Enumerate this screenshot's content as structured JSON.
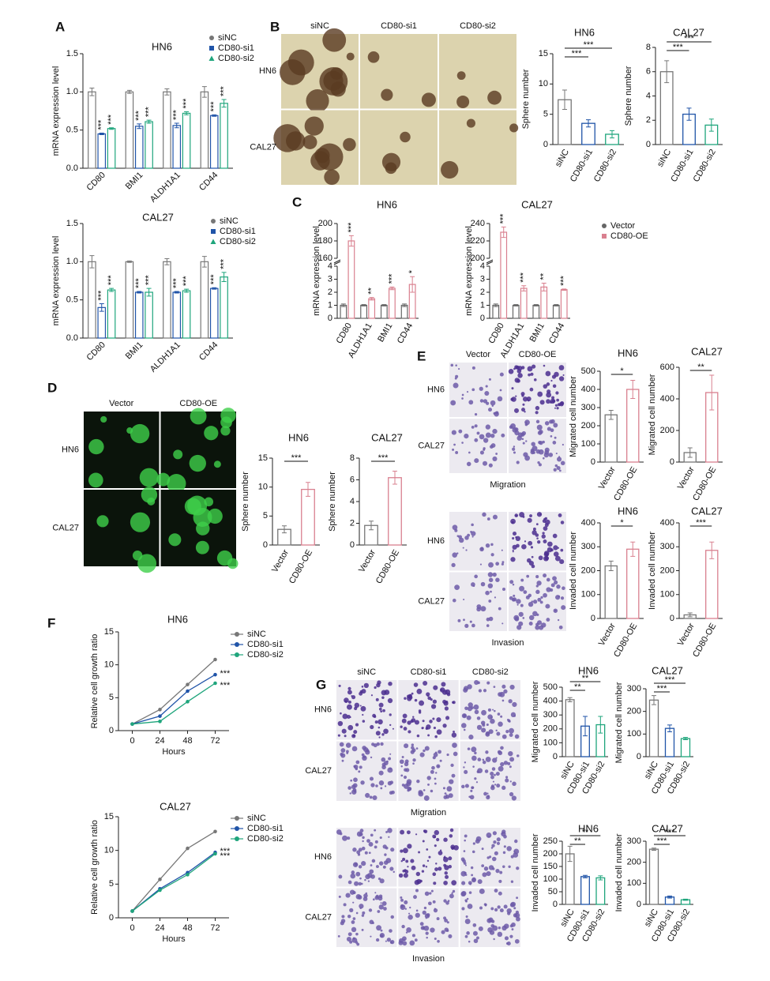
{
  "panel_letters": [
    "A",
    "B",
    "C",
    "D",
    "E",
    "F",
    "G"
  ],
  "images": [
    {
      "columns": [
        "siNC",
        "CD80-si1",
        "CD80-si2"
      ],
      "rows": [
        "HN6",
        "CAL27"
      ]
    },
    {
      "columns": [
        "Vector",
        "CD80-OE"
      ],
      "rows": [
        "HN6",
        "CAL27"
      ]
    },
    {
      "columns": [
        "Vector",
        "CD80-OE"
      ],
      "rows": [
        "HN6",
        "CAL27"
      ],
      "caption": "Migration"
    },
    {
      "rows": [
        "HN6",
        "CAL27"
      ],
      "caption": "Invasion"
    },
    {
      "columns": [
        "siNC",
        "CD80-si1",
        "CD80-si2"
      ],
      "rows": [
        "HN6",
        "CAL27"
      ],
      "caption": "Migration"
    },
    {
      "rows": [
        "HN6",
        "CAL27"
      ],
      "caption": "Invasion"
    }
  ],
  "chart_data": [
    {
      "type": "bar",
      "title": "HN6",
      "ylabel": "mRNA expression level",
      "legend": true,
      "categories": [
        "CD80",
        "BMI1",
        "ALDH1A1",
        "CD44"
      ],
      "series": [
        {
          "name": "siNC",
          "color": "#777777",
          "values": [
            1,
            1,
            1,
            1
          ],
          "errors": [
            0.05,
            0.02,
            0.04,
            0.07
          ]
        },
        {
          "name": "CD80-si1",
          "color": "#2054a8",
          "values": [
            0.45,
            0.55,
            0.56,
            0.69
          ],
          "errors": [
            0.01,
            0.03,
            0.03,
            0.01
          ],
          "stars": [
            "***",
            "***",
            "***",
            "***"
          ]
        },
        {
          "name": "CD80-si2",
          "color": "#1fa57c",
          "values": [
            0.52,
            0.61,
            0.72,
            0.85
          ],
          "errors": [
            0.01,
            0.02,
            0.02,
            0.05
          ],
          "stars": [
            "***",
            "***",
            "***",
            "***"
          ]
        }
      ],
      "ylim": [
        0,
        1.5
      ],
      "yticks": [
        {
          "value": 0,
          "label": "0.0"
        },
        0.5,
        {
          "value": 1,
          "label": "1.0"
        },
        1.5
      ]
    },
    {
      "type": "bar",
      "title": "CAL27",
      "ylabel": "mRNA expression level",
      "legend": true,
      "categories": [
        "CD80",
        "BMI1",
        "ALDH1A1",
        "CD44"
      ],
      "series": [
        {
          "name": "siNC",
          "color": "#777777",
          "values": [
            1,
            1,
            1,
            1
          ],
          "errors": [
            0.08,
            0.01,
            0.04,
            0.07
          ]
        },
        {
          "name": "CD80-si1",
          "color": "#2054a8",
          "values": [
            0.4,
            0.6,
            0.6,
            0.65
          ],
          "errors": [
            0.05,
            0.01,
            0.01,
            0.01
          ],
          "stars": [
            "***",
            "***",
            "***",
            "***"
          ]
        },
        {
          "name": "CD80-si2",
          "color": "#1fa57c",
          "values": [
            0.63,
            0.6,
            0.62,
            0.8
          ],
          "errors": [
            0.02,
            0.05,
            0.02,
            0.06
          ],
          "stars": [
            "***",
            "***",
            "***",
            "***"
          ]
        }
      ],
      "ylim": [
        0,
        1.5
      ],
      "yticks": [
        {
          "value": 0,
          "label": "0.0"
        },
        0.5,
        {
          "value": 1,
          "label": "1.0"
        },
        1.5
      ]
    },
    {
      "type": "bar",
      "title": "HN6",
      "ylabel": "Sphere number",
      "categories": [
        "siNC",
        "CD80-si1",
        "CD80-si2"
      ],
      "values": [
        7.4,
        3.5,
        1.7
      ],
      "errors": [
        1.6,
        0.6,
        0.6
      ],
      "colors": [
        "#777777",
        "#2054a8",
        "#1fa57c"
      ],
      "comparisons": [
        "***",
        "***"
      ],
      "ylim": [
        0,
        15
      ],
      "yticks": [
        0,
        5,
        10,
        15
      ]
    },
    {
      "type": "bar",
      "title": "CAL27",
      "ylabel": "Sphere number",
      "categories": [
        "siNC",
        "CD80-si1",
        "CD80-si2"
      ],
      "values": [
        6,
        2.5,
        1.6
      ],
      "errors": [
        0.9,
        0.5,
        0.5
      ],
      "colors": [
        "#777777",
        "#2054a8",
        "#1fa57c"
      ],
      "comparisons": [
        "***",
        "***"
      ],
      "ylim": [
        0,
        8
      ],
      "yticks": [
        0,
        2,
        4,
        6,
        8
      ]
    },
    {
      "type": "bar",
      "title": "HN6",
      "ylabel": "mRNA expression level",
      "categories": [
        "CD80",
        "ALDH1A1",
        "BMI1",
        "CD44"
      ],
      "series": [
        {
          "name": "Vector",
          "color": "#666666",
          "values": [
            1,
            1,
            1,
            1
          ],
          "errors": [
            0.1,
            0.05,
            0.05,
            0.1
          ]
        },
        {
          "name": "CD80-OE",
          "color": "#d9808f",
          "values": [
            180,
            1.5,
            2.3,
            2.6
          ],
          "errors": [
            6,
            0.1,
            0.1,
            0.6
          ],
          "stars": [
            "***",
            "**",
            "***",
            "*"
          ]
        }
      ],
      "ylim": [
        0,
        200
      ],
      "ybreak": [
        4,
        160
      ],
      "yticks": [
        0,
        1,
        2,
        3,
        4,
        160,
        180,
        200
      ]
    },
    {
      "type": "bar",
      "title": "CAL27",
      "ylabel": "mRNA expression level",
      "legend": true,
      "categories": [
        "CD80",
        "ALDH1A1",
        "BMI1",
        "CD44"
      ],
      "series": [
        {
          "name": "Vector",
          "color": "#666666",
          "values": [
            1,
            1,
            1,
            1
          ],
          "errors": [
            0.1,
            0.05,
            0.05,
            0.05
          ]
        },
        {
          "name": "CD80-OE",
          "color": "#d9808f",
          "values": [
            230,
            2.3,
            2.4,
            2.2
          ],
          "errors": [
            6,
            0.2,
            0.3,
            0.05
          ],
          "stars": [
            "***",
            "***",
            "**",
            "***"
          ]
        }
      ],
      "ylim": [
        0,
        240
      ],
      "ybreak": [
        4,
        200
      ],
      "yticks": [
        0,
        1,
        2,
        3,
        4,
        200,
        220,
        240
      ]
    },
    {
      "type": "bar",
      "title": "HN6",
      "ylabel": "Sphere number",
      "categories": [
        "Vector",
        "CD80-OE"
      ],
      "values": [
        2.7,
        9.6
      ],
      "errors": [
        0.6,
        1.2
      ],
      "colors": [
        "#777777",
        "#d9808f"
      ],
      "comparisons": [
        "***"
      ],
      "ylim": [
        0,
        15
      ],
      "yticks": [
        0,
        5,
        10,
        15
      ]
    },
    {
      "type": "bar",
      "title": "CAL27",
      "ylabel": "Sphere number",
      "categories": [
        "Vector",
        "CD80-OE"
      ],
      "values": [
        1.8,
        6.2
      ],
      "errors": [
        0.4,
        0.6
      ],
      "colors": [
        "#777777",
        "#d9808f"
      ],
      "comparisons": [
        "***"
      ],
      "ylim": [
        0,
        8
      ],
      "yticks": [
        0,
        2,
        4,
        6,
        8
      ]
    },
    {
      "type": "bar",
      "title": "HN6",
      "ylabel": "Migrated cell number",
      "categories": [
        "Vector",
        "CD80-OE"
      ],
      "values": [
        260,
        400
      ],
      "errors": [
        25,
        50
      ],
      "colors": [
        "#777777",
        "#d9808f"
      ],
      "comparisons": [
        "*"
      ],
      "ylim": [
        0,
        500
      ],
      "yticks": [
        0,
        100,
        200,
        300,
        400,
        500
      ]
    },
    {
      "type": "bar",
      "title": "CAL27",
      "ylabel": "Migrated cell number",
      "categories": [
        "Vector",
        "CD80-OE"
      ],
      "values": [
        60,
        440
      ],
      "errors": [
        30,
        110
      ],
      "colors": [
        "#777777",
        "#d9808f"
      ],
      "comparisons": [
        "**"
      ],
      "ylim": [
        0,
        600
      ],
      "yticks": [
        0,
        200,
        400,
        600
      ]
    },
    {
      "type": "bar",
      "title": "HN6",
      "ylabel": "Invaded cell number",
      "categories": [
        "Vector",
        "CD80-OE"
      ],
      "values": [
        220,
        290
      ],
      "errors": [
        20,
        30
      ],
      "colors": [
        "#777777",
        "#d9808f"
      ],
      "comparisons": [
        "*"
      ],
      "ylim": [
        0,
        400
      ],
      "yticks": [
        0,
        100,
        200,
        300,
        400
      ]
    },
    {
      "type": "bar",
      "title": "CAL27",
      "ylabel": "Invaded cell number",
      "categories": [
        "Vector",
        "CD80-OE"
      ],
      "values": [
        15,
        285
      ],
      "errors": [
        8,
        35
      ],
      "colors": [
        "#777777",
        "#d9808f"
      ],
      "comparisons": [
        "***"
      ],
      "ylim": [
        0,
        400
      ],
      "yticks": [
        0,
        100,
        200,
        300,
        400
      ]
    },
    {
      "type": "line",
      "title": "HN6",
      "ylabel": "Relative cell growth ratio",
      "xlabel": "Hours",
      "legend": true,
      "x": [
        0,
        24,
        48,
        72
      ],
      "xlim": [
        -12,
        84
      ],
      "xticks": [
        0,
        24,
        48,
        72
      ],
      "ylim": [
        0,
        15
      ],
      "yticks": [
        0,
        5,
        10,
        15
      ],
      "series": [
        {
          "name": "siNC",
          "color": "#777777",
          "values": [
            1,
            3.2,
            7,
            10.8
          ]
        },
        {
          "name": "CD80-si1",
          "color": "#2054a8",
          "values": [
            1,
            2.2,
            6,
            8.5
          ],
          "stars": "***"
        },
        {
          "name": "CD80-si2",
          "color": "#1fa57c",
          "values": [
            1,
            1.4,
            4.4,
            7.2
          ],
          "stars": "***"
        }
      ]
    },
    {
      "type": "line",
      "title": "CAL27",
      "ylabel": "Relative cell growth ratio",
      "xlabel": "Hours",
      "legend": true,
      "x": [
        0,
        24,
        48,
        72
      ],
      "xlim": [
        -12,
        84
      ],
      "xticks": [
        0,
        24,
        48,
        72
      ],
      "ylim": [
        0,
        15
      ],
      "yticks": [
        0,
        5,
        10,
        15
      ],
      "series": [
        {
          "name": "siNC",
          "color": "#777777",
          "values": [
            1,
            5.7,
            10.3,
            12.8
          ]
        },
        {
          "name": "CD80-si1",
          "color": "#2054a8",
          "values": [
            1,
            4.3,
            6.7,
            9.7
          ],
          "stars": "***"
        },
        {
          "name": "CD80-si2",
          "color": "#1fa57c",
          "values": [
            1,
            4.1,
            6.4,
            9.5
          ],
          "stars": "***"
        }
      ]
    },
    {
      "type": "bar",
      "title": "HN6",
      "ylabel": "Migrated cell number",
      "categories": [
        "siNC",
        "CD80-si1",
        "CD80-si2"
      ],
      "values": [
        410,
        220,
        230
      ],
      "errors": [
        15,
        70,
        60
      ],
      "colors": [
        "#777777",
        "#2054a8",
        "#1fa57c"
      ],
      "comparisons": [
        "**",
        "**"
      ],
      "ylim": [
        0,
        500
      ],
      "yticks": [
        0,
        100,
        200,
        300,
        400,
        500
      ]
    },
    {
      "type": "bar",
      "title": "CAL27",
      "ylabel": "Migrated cell number",
      "categories": [
        "siNC",
        "CD80-si1",
        "CD80-si2"
      ],
      "values": [
        250,
        125,
        80
      ],
      "errors": [
        20,
        15,
        5
      ],
      "colors": [
        "#777777",
        "#2054a8",
        "#1fa57c"
      ],
      "comparisons": [
        "***",
        "***"
      ],
      "ylim": [
        0,
        300
      ],
      "yticks": [
        0,
        100,
        200,
        300
      ]
    },
    {
      "type": "bar",
      "title": "HN6",
      "ylabel": "Invaded cell number",
      "categories": [
        "siNC",
        "CD80-si1",
        "CD80-si2"
      ],
      "values": [
        200,
        110,
        105
      ],
      "errors": [
        30,
        5,
        8
      ],
      "colors": [
        "#777777",
        "#2054a8",
        "#1fa57c"
      ],
      "comparisons": [
        "**",
        "**"
      ],
      "ylim": [
        0,
        250
      ],
      "yticks": [
        0,
        50,
        100,
        150,
        200,
        250
      ]
    },
    {
      "type": "bar",
      "title": "CAL27",
      "ylabel": "Invaded cell number",
      "categories": [
        "siNC",
        "CD80-si1",
        "CD80-si2"
      ],
      "values": [
        262,
        35,
        22
      ],
      "errors": [
        5,
        5,
        3
      ],
      "colors": [
        "#777777",
        "#2054a8",
        "#1fa57c"
      ],
      "comparisons": [
        "***",
        "***"
      ],
      "ylim": [
        0,
        300
      ],
      "yticks": [
        0,
        100,
        200,
        300
      ]
    }
  ]
}
